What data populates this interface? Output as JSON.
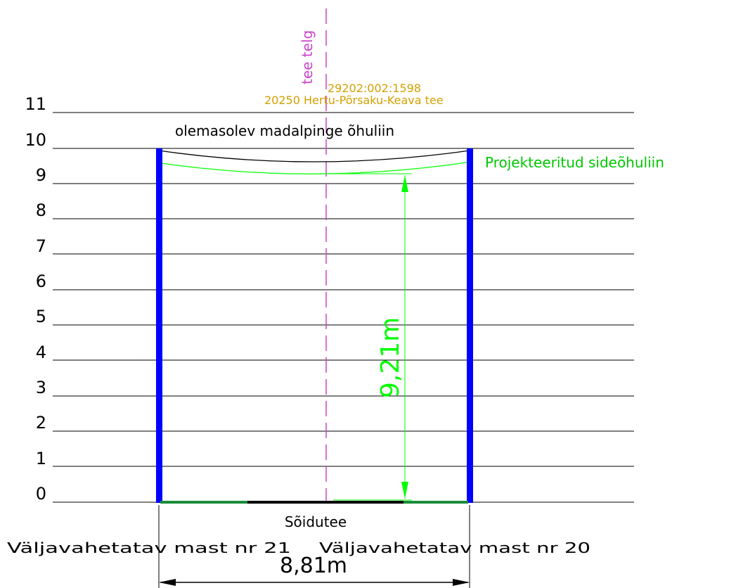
{
  "y_axis": {
    "ticks": [
      "0",
      "1",
      "2",
      "3",
      "4",
      "5",
      "6",
      "7",
      "8",
      "9",
      "10",
      "11"
    ]
  },
  "labels": {
    "road_axis": "tee telg",
    "parcel_id": "29202:002:1598",
    "road_name": "20250 Hertu-Põrsaku-Keava tee",
    "existing_line": "olemasolev madalpinge õhuliin",
    "projected_line": "Projekteeritud sideõhuliin",
    "height_dimension": "9,21m",
    "carriageway": "Sõidutee",
    "mast_left": "Väljavahetatav mast nr 21",
    "mast_right": "Väljavahetatav mast nr 20",
    "span_dimension": "8,81m"
  },
  "colors": {
    "mast": "#0000ff",
    "projected": "#00ff00",
    "annotation": "#d4a000",
    "road_axis": "#cc44cc",
    "road_surface": "#1a8c3a",
    "lines": "#000000"
  },
  "chart_data": {
    "type": "diagram",
    "ylim": [
      0,
      11
    ],
    "gridlines": [
      0,
      1,
      2,
      3,
      4,
      5,
      6,
      7,
      8,
      9,
      10,
      11
    ],
    "mast_top": 10,
    "existing_line_sag_min": 9.6,
    "projected_line_min_height": 9.21,
    "span_length": 8.81
  }
}
